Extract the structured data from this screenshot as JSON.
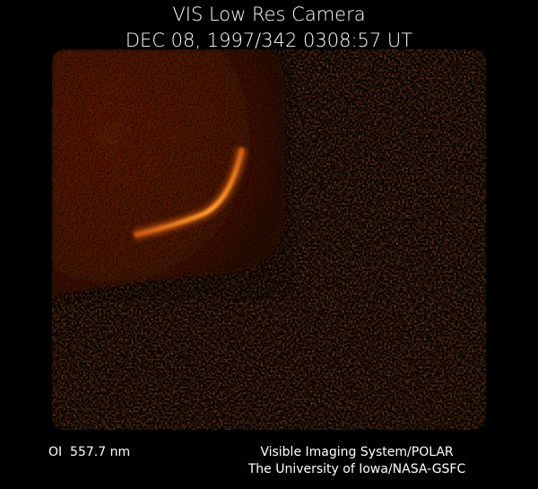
{
  "header": {
    "title": "VIS Low Res Camera",
    "timestamp": "DEC 08, 1997/342 0308:57 UT"
  },
  "footer": {
    "filter": "OI  557.7 nm",
    "credit_line_1": "Visible Imaging System/POLAR",
    "credit_line_2": "The University of Iowa/NASA-GSFC"
  }
}
